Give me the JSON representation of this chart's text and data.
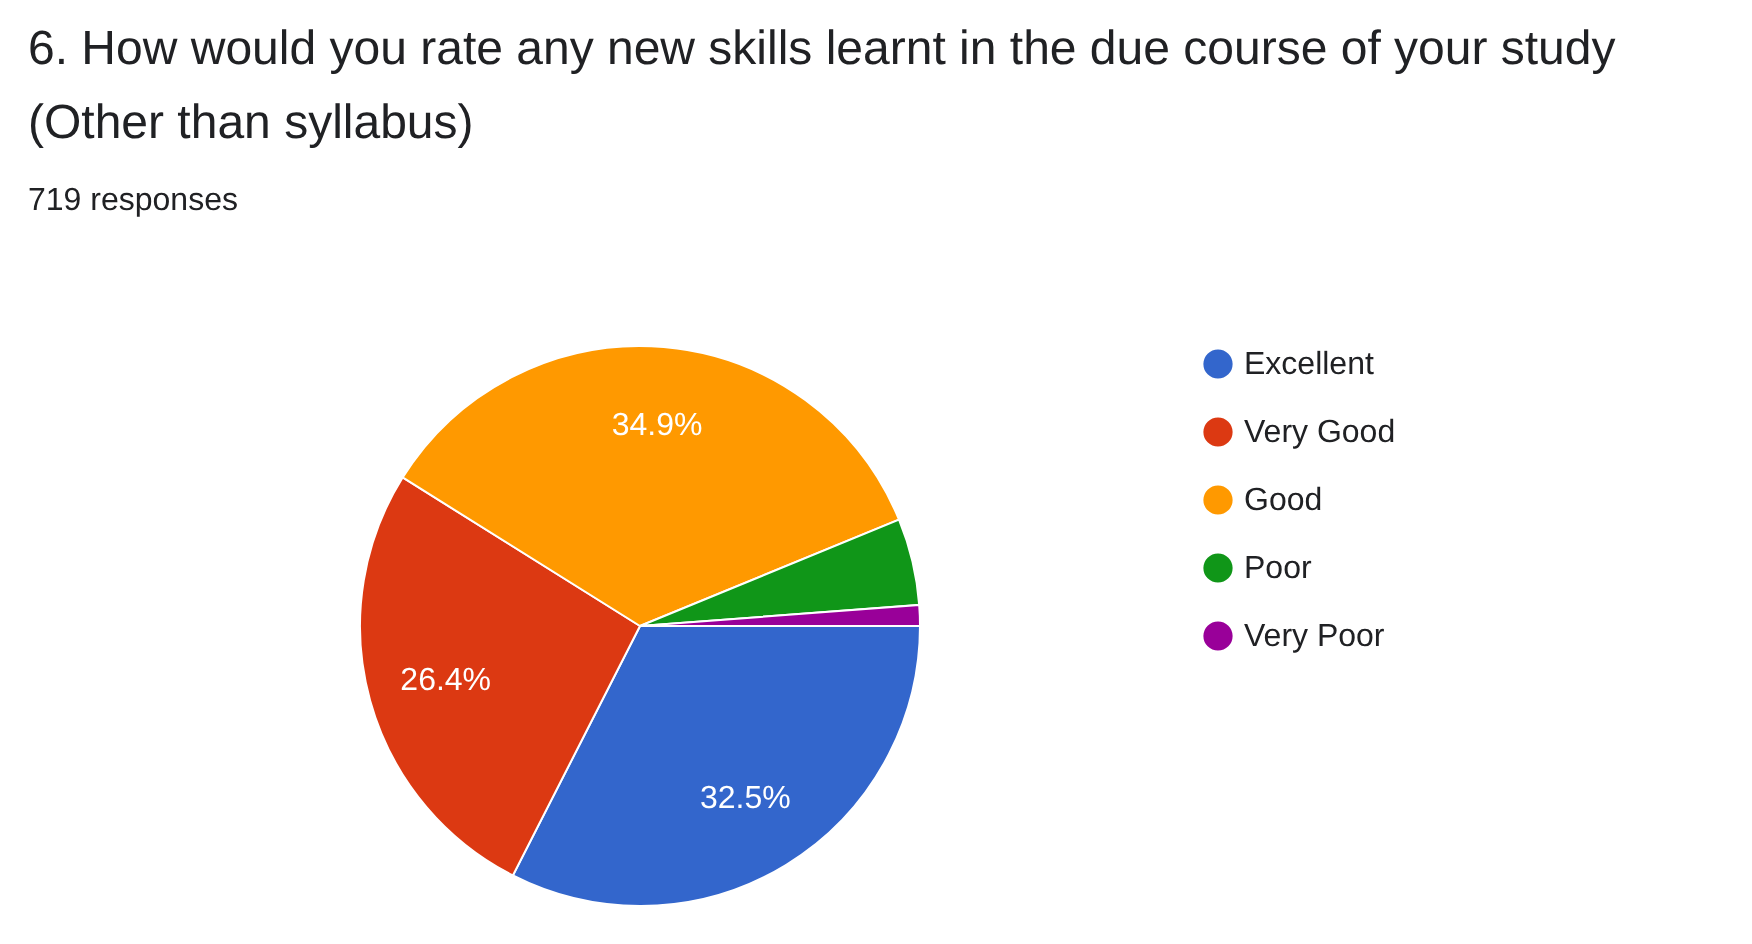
{
  "chart_data": {
    "type": "pie",
    "title": "6. How would you rate any new skills learnt in the due course of your study (Other than syllabus)",
    "subtitle": "719 responses",
    "categories": [
      "Excellent",
      "Very Good",
      "Good",
      "Poor",
      "Very Poor"
    ],
    "values": [
      32.5,
      26.4,
      34.9,
      5.0,
      1.2
    ],
    "colors": [
      "#3366cc",
      "#dc3912",
      "#ff9900",
      "#109618",
      "#990099"
    ],
    "value_labels": [
      "32.5%",
      "26.4%",
      "34.9%",
      null,
      null
    ],
    "legend": "right"
  }
}
